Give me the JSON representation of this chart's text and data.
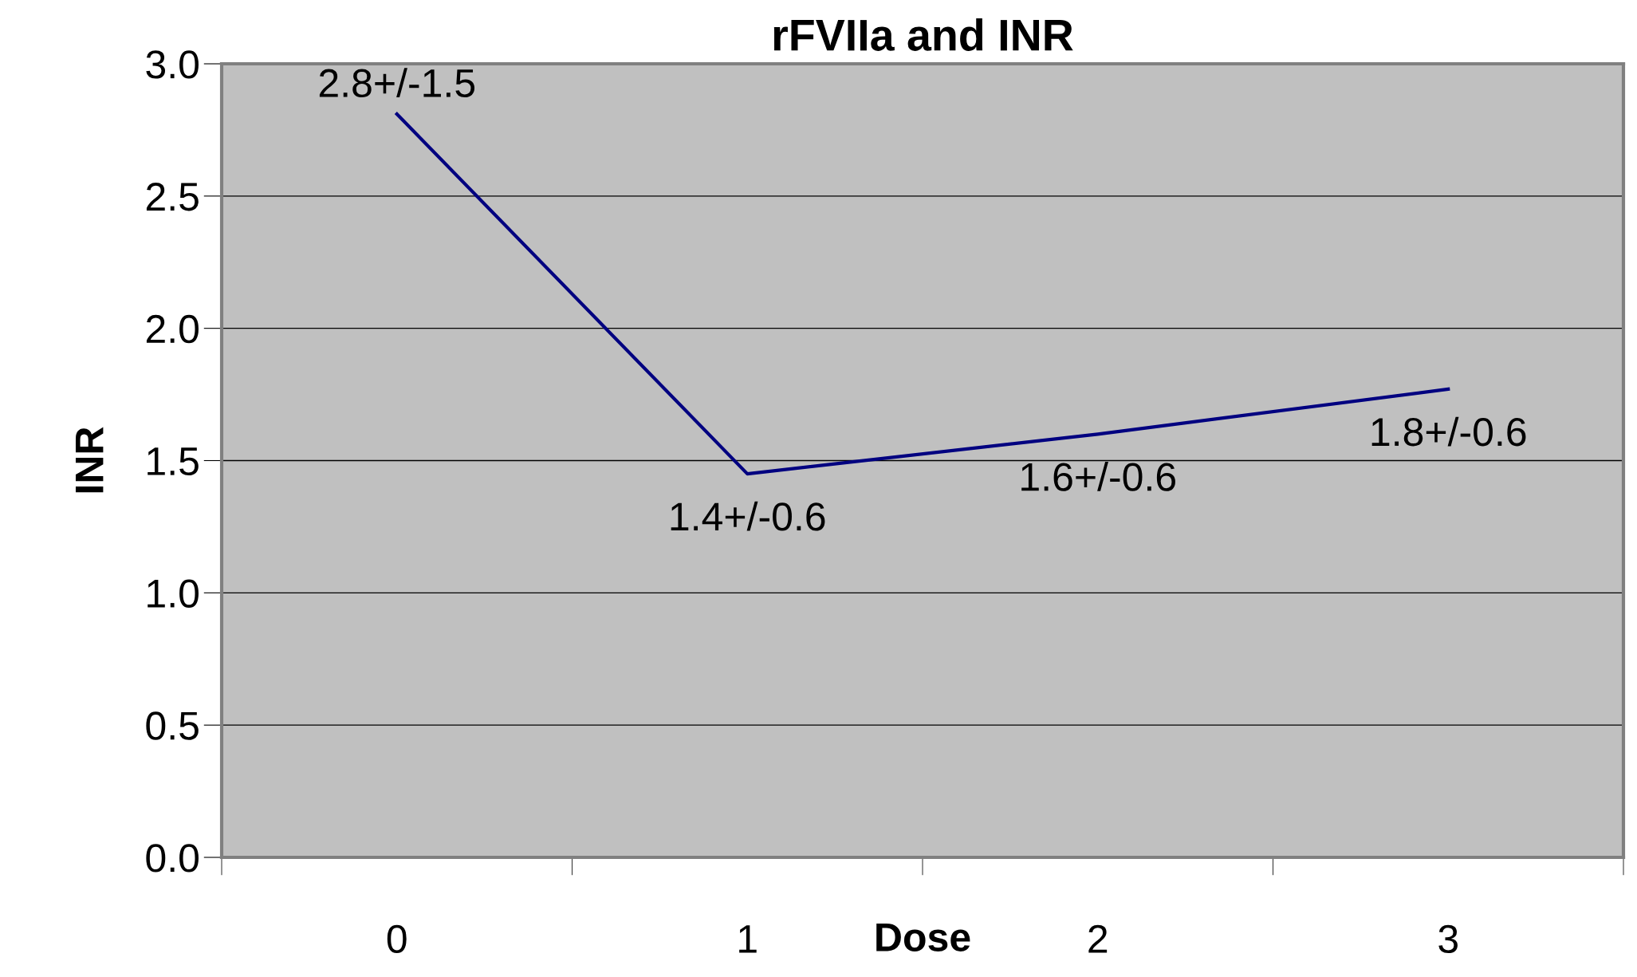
{
  "chart_data": {
    "type": "line",
    "title": "rFVIIa and INR",
    "xlabel": "Dose",
    "ylabel": "INR",
    "categories": [
      "0",
      "1",
      "2",
      "3"
    ],
    "series": [
      {
        "color": "#000080",
        "values": [
          2.81,
          1.45,
          1.6,
          1.77
        ],
        "value_labels": [
          "2.8+/-1.5",
          "1.4+/-0.6",
          "1.6+/-0.6",
          "1.8+/-0.6"
        ]
      }
    ],
    "ylim": [
      0,
      3
    ],
    "yticks": [
      {
        "value": 0,
        "label": "0.0"
      },
      {
        "value": 0.5,
        "label": "0.5"
      },
      {
        "value": 1,
        "label": "1.0"
      },
      {
        "value": 1.5,
        "label": "1.5"
      },
      {
        "value": 2,
        "label": "2.0"
      },
      {
        "value": 2.5,
        "label": "2.5"
      },
      {
        "value": 3,
        "label": "3.0"
      }
    ],
    "grid": "y",
    "legend": false,
    "marker": "none",
    "line_style": "solid"
  }
}
